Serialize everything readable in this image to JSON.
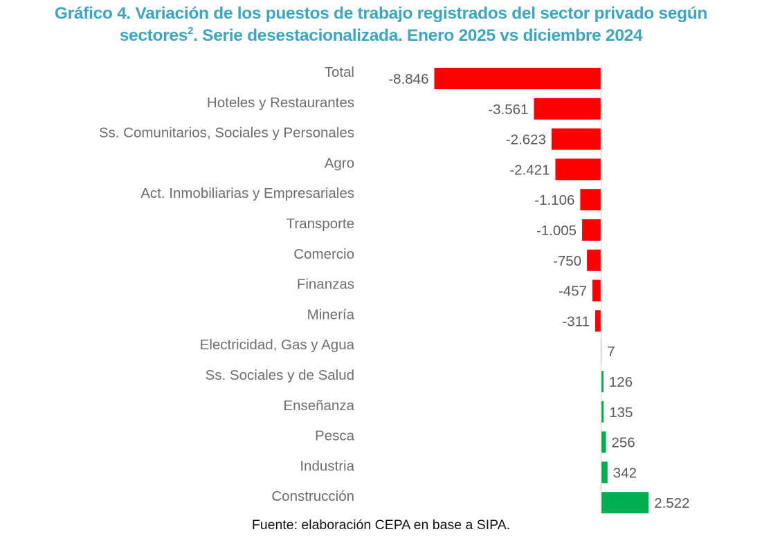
{
  "chart_data": {
    "type": "bar",
    "orientation": "horizontal",
    "title_line1": "Gráfico 4. Variación de los puestos de trabajo registrados del sector privado según",
    "title_line2_pre": "sectores",
    "title_superscript": "2",
    "title_line2_post": ". Serie desestacionalizada. Enero 2025 vs diciembre 2024",
    "xlabel": "",
    "ylabel": "",
    "grid": false,
    "legend": "none",
    "xlim": [
      -8846,
      2522
    ],
    "categories": [
      "Total",
      "Hoteles y Restaurantes",
      "Ss. Comunitarios, Sociales y Personales",
      "Agro",
      "Act. Inmobiliarias y Empresariales",
      "Transporte",
      "Comercio",
      "Finanzas",
      "Minería",
      "Electricidad, Gas y Agua",
      "Ss. Sociales y de Salud",
      "Enseñanza",
      "Pesca",
      "Industria",
      "Construcción"
    ],
    "values": [
      -8846,
      -3561,
      -2623,
      -2421,
      -1106,
      -1005,
      -750,
      -457,
      -311,
      7,
      126,
      135,
      256,
      342,
      2522
    ],
    "value_labels": [
      "-8.846",
      "-3.561",
      "-2.623",
      "-2.421",
      "-1.106",
      "-1.005",
      "-750",
      "-457",
      "-311",
      "7",
      "126",
      "135",
      "256",
      "342",
      "2.522"
    ],
    "colors": {
      "negative": "#ff0000",
      "positive": "#00b050",
      "axis": "#d9d9d9",
      "title": "#3ba6c4"
    },
    "source": "Fuente: elaboración CEPA en base a SIPA."
  }
}
